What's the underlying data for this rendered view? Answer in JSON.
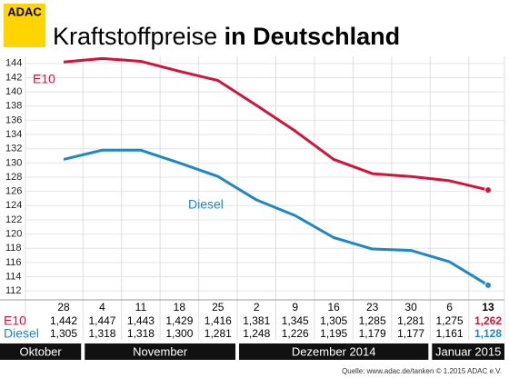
{
  "chart_data": {
    "type": "line",
    "logo": "ADAC",
    "title_regular": "Kraftstoffpreise",
    "title_bold": "in Deutschland",
    "categories": [
      "28",
      "4",
      "11",
      "18",
      "25",
      "2",
      "9",
      "16",
      "23",
      "30",
      "6",
      "13"
    ],
    "months": [
      "Oktober",
      "November",
      "Dezember 2014",
      "Januar 2015"
    ],
    "series": [
      {
        "name": "E10",
        "color": "#d2143c",
        "values": [
          144.2,
          144.7,
          144.3,
          142.9,
          141.6,
          138.1,
          134.5,
          130.5,
          128.5,
          128.1,
          127.5,
          126.2
        ],
        "value_labels": [
          "1,442",
          "1,447",
          "1,443",
          "1,429",
          "1,416",
          "1,381",
          "1,345",
          "1,305",
          "1,285",
          "1,281",
          "1,275",
          "1,262"
        ]
      },
      {
        "name": "Diesel",
        "color": "#1f88c4",
        "values": [
          130.5,
          131.8,
          131.8,
          130.0,
          128.1,
          124.8,
          122.6,
          119.5,
          117.9,
          117.7,
          116.1,
          112.8
        ],
        "value_labels": [
          "1,305",
          "1,318",
          "1,318",
          "1,300",
          "1,281",
          "1,248",
          "1,226",
          "1,195",
          "1,179",
          "1,177",
          "1,161",
          "1,128"
        ]
      }
    ],
    "ylim": [
      111,
      145
    ],
    "yticks": [
      112,
      114,
      116,
      118,
      120,
      122,
      124,
      126,
      128,
      130,
      132,
      134,
      136,
      138,
      140,
      142,
      144
    ],
    "grid": true,
    "source": "Quelle: www.adac.de/tanken   © 1.2015  ADAC e.V."
  }
}
